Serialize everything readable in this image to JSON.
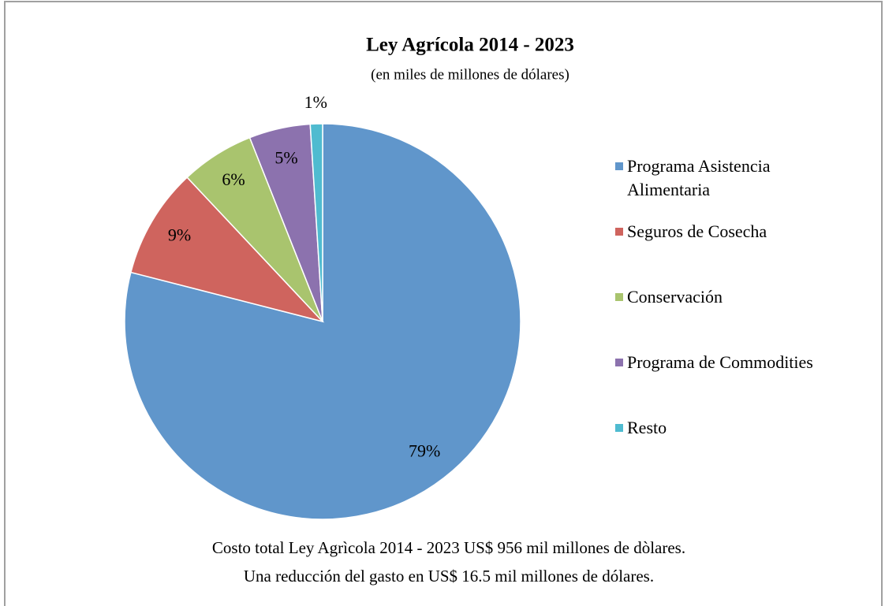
{
  "chart_data": {
    "type": "pie",
    "title": "Ley Agrícola 2014 - 2023",
    "subtitle": "(en miles de millones de dólares)",
    "categories": [
      "Programa Asistencia Alimentaria",
      "Seguros de Cosecha",
      "Conservación",
      "Programa de Commodities",
      "Resto"
    ],
    "values": [
      79,
      9,
      6,
      5,
      1
    ],
    "value_labels": [
      "79%",
      "9%",
      "6%",
      "5%",
      "1%"
    ],
    "colors": [
      "#6096cb",
      "#cf645e",
      "#a9c46e",
      "#8c72ae",
      "#4fbbd0"
    ],
    "legend": "right",
    "annotations": [
      "Costo total Ley Agrìcola 2014 - 2023 US$ 956 mil millones de dòlares.",
      "Una reducción del gasto en US$ 16.5 mil millones de dólares."
    ]
  }
}
